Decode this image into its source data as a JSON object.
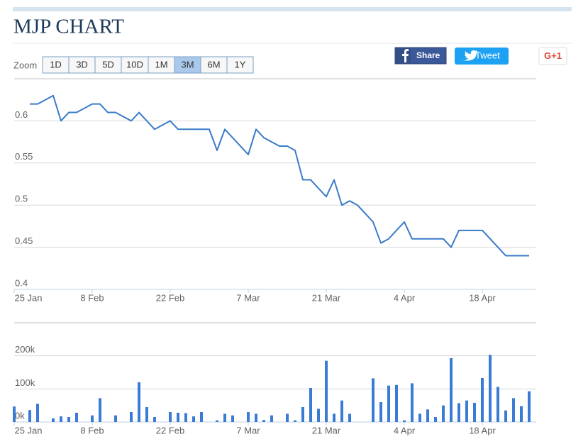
{
  "page": {
    "title": "MJP CHART",
    "zoom_label": "Zoom",
    "zoom_buttons": [
      "1D",
      "3D",
      "5D",
      "10D",
      "1M",
      "3M",
      "6M",
      "1Y"
    ],
    "zoom_selected": 5,
    "share": "Share",
    "tweet": "Tweet",
    "gplus": "G+1"
  },
  "chart_data": [
    {
      "type": "line",
      "color": "#3a7bc8",
      "grid": true,
      "categories": [
        "25 Jan",
        "26 Jan",
        "27 Jan",
        "28 Jan",
        "29 Jan",
        "1 Feb",
        "2 Feb",
        "3 Feb",
        "4 Feb",
        "5 Feb",
        "8 Feb",
        "9 Feb",
        "10 Feb",
        "11 Feb",
        "12 Feb",
        "15 Feb",
        "16 Feb",
        "17 Feb",
        "18 Feb",
        "19 Feb",
        "22 Feb",
        "23 Feb",
        "24 Feb",
        "25 Feb",
        "26 Feb",
        "29 Feb",
        "1 Mar",
        "2 Mar",
        "3 Mar",
        "4 Mar",
        "7 Mar",
        "8 Mar",
        "9 Mar",
        "10 Mar",
        "11 Mar",
        "14 Mar",
        "15 Mar",
        "16 Mar",
        "17 Mar",
        "18 Mar",
        "21 Mar",
        "22 Mar",
        "23 Mar",
        "24 Mar",
        "25 Mar",
        "28 Mar",
        "29 Mar",
        "30 Mar",
        "31 Mar",
        "1 Apr",
        "4 Apr",
        "5 Apr",
        "6 Apr",
        "7 Apr",
        "8 Apr",
        "11 Apr",
        "12 Apr",
        "13 Apr",
        "14 Apr",
        "15 Apr",
        "18 Apr",
        "19 Apr",
        "20 Apr",
        "21 Apr",
        "22 Apr",
        "25 Apr",
        "26 Apr"
      ],
      "values": [
        null,
        null,
        0.62,
        0.62,
        0.625,
        0.63,
        0.6,
        0.61,
        0.61,
        0.615,
        0.62,
        0.62,
        0.61,
        0.61,
        0.605,
        0.6,
        0.61,
        0.6,
        0.59,
        0.595,
        0.6,
        0.59,
        0.59,
        0.59,
        0.59,
        0.59,
        0.565,
        0.59,
        0.58,
        0.57,
        0.56,
        0.59,
        0.58,
        0.575,
        0.57,
        0.57,
        0.565,
        0.53,
        0.53,
        0.52,
        0.51,
        0.53,
        0.5,
        0.505,
        0.5,
        0.49,
        0.48,
        0.455,
        0.46,
        0.47,
        0.48,
        0.46,
        0.46,
        0.46,
        0.46,
        0.46,
        0.45,
        0.47,
        0.47,
        0.47,
        0.47,
        0.46,
        0.45,
        0.44,
        0.44,
        0.44,
        0.44
      ],
      "ylim": [
        0.4,
        0.65
      ],
      "yticks": [
        0.4,
        0.45,
        0.5,
        0.55,
        0.6
      ],
      "xticks": [
        "25 Jan",
        "8 Feb",
        "22 Feb",
        "7 Mar",
        "21 Mar",
        "4 Apr",
        "18 Apr"
      ]
    },
    {
      "type": "bar",
      "color": "#3a7bd5",
      "grid": true,
      "categories": [
        "25 Jan",
        "26 Jan",
        "27 Jan",
        "28 Jan",
        "29 Jan",
        "1 Feb",
        "2 Feb",
        "3 Feb",
        "4 Feb",
        "5 Feb",
        "8 Feb",
        "9 Feb",
        "10 Feb",
        "11 Feb",
        "12 Feb",
        "15 Feb",
        "16 Feb",
        "17 Feb",
        "18 Feb",
        "19 Feb",
        "22 Feb",
        "23 Feb",
        "24 Feb",
        "25 Feb",
        "26 Feb",
        "29 Feb",
        "1 Mar",
        "2 Mar",
        "3 Mar",
        "4 Mar",
        "7 Mar",
        "8 Mar",
        "9 Mar",
        "10 Mar",
        "11 Mar",
        "14 Mar",
        "15 Mar",
        "16 Mar",
        "17 Mar",
        "18 Mar",
        "21 Mar",
        "22 Mar",
        "23 Mar",
        "24 Mar",
        "25 Mar",
        "28 Mar",
        "29 Mar",
        "30 Mar",
        "31 Mar",
        "1 Apr",
        "4 Apr",
        "5 Apr",
        "6 Apr",
        "7 Apr",
        "8 Apr",
        "11 Apr",
        "12 Apr",
        "13 Apr",
        "14 Apr",
        "15 Apr",
        "18 Apr",
        "19 Apr",
        "20 Apr",
        "21 Apr",
        "22 Apr",
        "25 Apr",
        "26 Apr"
      ],
      "values": [
        47000,
        0,
        36000,
        55000,
        0,
        11000,
        17000,
        15000,
        28000,
        0,
        20000,
        72000,
        0,
        20000,
        0,
        30000,
        120000,
        45000,
        15000,
        0,
        30000,
        28000,
        27000,
        17000,
        30000,
        0,
        5000,
        25000,
        20000,
        0,
        30000,
        25000,
        6000,
        20000,
        0,
        25000,
        5000,
        45000,
        103000,
        40000,
        185000,
        25000,
        65000,
        25000,
        0,
        0,
        132000,
        60000,
        110000,
        112000,
        5000,
        117000,
        25000,
        38000,
        15000,
        50000,
        193000,
        57000,
        65000,
        58000,
        133000,
        203000,
        106000,
        35000,
        72000,
        48000,
        93000
      ],
      "ylim": [
        0,
        300000
      ],
      "yticks": [
        {
          "value": 0,
          "label": "0k"
        },
        {
          "value": 100000,
          "label": "100k"
        },
        {
          "value": 200000,
          "label": "200k"
        }
      ],
      "xticks": [
        "25 Jan",
        "8 Feb",
        "22 Feb",
        "7 Mar",
        "21 Mar",
        "4 Apr",
        "18 Apr"
      ]
    }
  ]
}
